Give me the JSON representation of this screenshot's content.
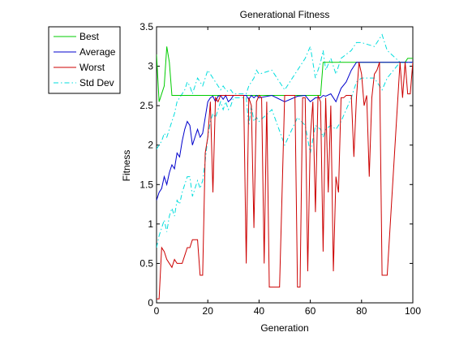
{
  "chart_data": {
    "type": "line",
    "title": "Generational Fitness",
    "xlabel": "Generation",
    "ylabel": "Fitness",
    "xlim": [
      0,
      100
    ],
    "ylim": [
      0,
      3.5
    ],
    "xticks": [
      0,
      20,
      40,
      60,
      80,
      100
    ],
    "yticks": [
      0,
      0.5,
      1,
      1.5,
      2,
      2.5,
      3,
      3.5
    ],
    "grid": false,
    "legend_position": "outside-top-left",
    "series": [
      {
        "name": "Best",
        "color": "#00cc00",
        "style": "solid",
        "x": [
          0,
          1,
          2,
          3,
          4,
          5,
          6,
          7,
          20,
          40,
          60,
          64,
          65,
          70,
          80,
          90,
          97,
          98,
          100
        ],
        "y": [
          3.15,
          2.55,
          2.65,
          2.75,
          3.25,
          3.05,
          2.63,
          2.63,
          2.63,
          2.63,
          2.63,
          2.63,
          3.05,
          3.05,
          3.05,
          3.05,
          3.05,
          3.1,
          3.1
        ]
      },
      {
        "name": "Average",
        "color": "#0000cc",
        "style": "solid",
        "x": [
          0,
          1,
          2,
          3,
          4,
          5,
          6,
          7,
          8,
          9,
          10,
          11,
          12,
          13,
          14,
          15,
          16,
          17,
          18,
          19,
          20,
          21,
          22,
          23,
          24,
          25,
          26,
          27,
          28,
          29,
          30,
          35,
          36,
          37,
          38,
          39,
          40,
          45,
          50,
          55,
          58,
          60,
          62,
          64,
          65,
          66,
          68,
          70,
          72,
          74,
          76,
          78,
          80,
          85,
          90,
          95,
          100
        ],
        "y": [
          1.3,
          1.4,
          1.45,
          1.6,
          1.5,
          1.65,
          1.75,
          1.7,
          1.9,
          1.85,
          2.05,
          2.2,
          2.3,
          2.25,
          2.0,
          2.1,
          2.2,
          2.1,
          2.15,
          2.35,
          2.55,
          2.6,
          2.62,
          2.55,
          2.62,
          2.63,
          2.58,
          2.63,
          2.55,
          2.58,
          2.63,
          2.63,
          2.58,
          2.63,
          2.6,
          2.63,
          2.6,
          2.63,
          2.55,
          2.62,
          2.63,
          2.55,
          2.6,
          2.6,
          2.63,
          2.62,
          2.65,
          2.55,
          2.72,
          2.8,
          2.95,
          3.05,
          3.05,
          3.05,
          3.05,
          3.05,
          3.05
        ]
      },
      {
        "name": "Worst",
        "color": "#cc0000",
        "style": "solid",
        "x": [
          0,
          1,
          2,
          3,
          4,
          5,
          6,
          7,
          8,
          9,
          10,
          11,
          12,
          13,
          14,
          15,
          16,
          17,
          18,
          19,
          20,
          21,
          22,
          23,
          24,
          25,
          26,
          27,
          28,
          30,
          33,
          34,
          35,
          36,
          37,
          38,
          39,
          40,
          41,
          42,
          43,
          44,
          45,
          46,
          47,
          48,
          50,
          52,
          53,
          54,
          55,
          56,
          57,
          58,
          59,
          60,
          61,
          62,
          63,
          64,
          65,
          66,
          67,
          68,
          69,
          70,
          71,
          72,
          73,
          74,
          75,
          76,
          77,
          78,
          79,
          80,
          81,
          82,
          83,
          84,
          85,
          86,
          87,
          88,
          90,
          95,
          96,
          97,
          98,
          99,
          100
        ],
        "y": [
          0.05,
          0.05,
          0.7,
          0.65,
          0.55,
          0.5,
          0.45,
          0.55,
          0.5,
          0.5,
          0.5,
          0.6,
          0.7,
          0.7,
          0.8,
          0.8,
          0.8,
          0.35,
          0.35,
          1.9,
          2.1,
          2.55,
          1.4,
          2.6,
          2.55,
          2.63,
          2.63,
          2.63,
          2.63,
          2.63,
          2.63,
          2.63,
          0.5,
          2.6,
          2.5,
          0.95,
          2.55,
          2.63,
          2.6,
          0.5,
          2.55,
          0.2,
          0.2,
          0.2,
          0.2,
          0.2,
          2.63,
          2.63,
          2.63,
          2.63,
          0.2,
          0.2,
          2.6,
          2.6,
          0.4,
          2.1,
          2.55,
          1.15,
          2.63,
          2.55,
          0.65,
          2.6,
          1.4,
          2.5,
          0.4,
          1.6,
          1.4,
          2.6,
          2.6,
          2.63,
          2.63,
          2.63,
          1.85,
          2.6,
          3.05,
          2.9,
          2.5,
          2.63,
          1.6,
          2.6,
          2.9,
          2.95,
          3.05,
          0.35,
          0.35,
          3.05,
          2.6,
          3.05,
          2.65,
          2.65,
          3.05
        ]
      },
      {
        "name": "Std Dev",
        "color": "#00dddd",
        "style": "dashdot",
        "band_of": "Average",
        "x": [
          0,
          1,
          2,
          3,
          4,
          5,
          6,
          7,
          8,
          9,
          10,
          11,
          12,
          13,
          14,
          15,
          16,
          17,
          18,
          19,
          20,
          21,
          22,
          23,
          24,
          25,
          26,
          27,
          28,
          29,
          30,
          35,
          36,
          37,
          38,
          39,
          40,
          45,
          50,
          55,
          58,
          60,
          62,
          64,
          65,
          66,
          68,
          70,
          72,
          74,
          76,
          78,
          80,
          85,
          88,
          90,
          95,
          100
        ],
        "upper": [
          1.95,
          2.0,
          2.05,
          2.15,
          2.1,
          2.2,
          2.3,
          2.4,
          2.55,
          2.6,
          2.65,
          2.7,
          2.8,
          2.75,
          2.65,
          2.75,
          2.85,
          2.8,
          2.75,
          2.85,
          2.95,
          2.9,
          2.85,
          2.8,
          2.75,
          2.7,
          2.75,
          2.7,
          2.68,
          2.7,
          2.65,
          2.65,
          2.75,
          2.8,
          2.85,
          2.95,
          2.9,
          2.95,
          2.7,
          2.95,
          3.1,
          3.25,
          2.85,
          3.05,
          3.2,
          2.95,
          3.1,
          2.9,
          3.1,
          3.15,
          3.2,
          3.3,
          3.3,
          3.25,
          3.4,
          3.2,
          3.05,
          3.05
        ],
        "lower": [
          0.7,
          0.85,
          0.95,
          1.05,
          0.9,
          1.1,
          1.2,
          1.1,
          1.3,
          1.25,
          1.4,
          1.5,
          1.6,
          1.6,
          1.35,
          1.45,
          1.55,
          1.45,
          1.55,
          1.8,
          2.1,
          2.3,
          2.4,
          2.35,
          2.45,
          2.55,
          2.45,
          2.55,
          2.45,
          2.5,
          2.6,
          2.6,
          2.25,
          2.5,
          2.3,
          2.35,
          2.3,
          2.45,
          2.0,
          2.35,
          2.25,
          1.9,
          2.25,
          2.2,
          2.1,
          2.2,
          2.25,
          2.2,
          2.3,
          2.45,
          2.6,
          2.8,
          2.85,
          2.85,
          2.7,
          2.85,
          3.05,
          3.05
        ]
      }
    ]
  }
}
